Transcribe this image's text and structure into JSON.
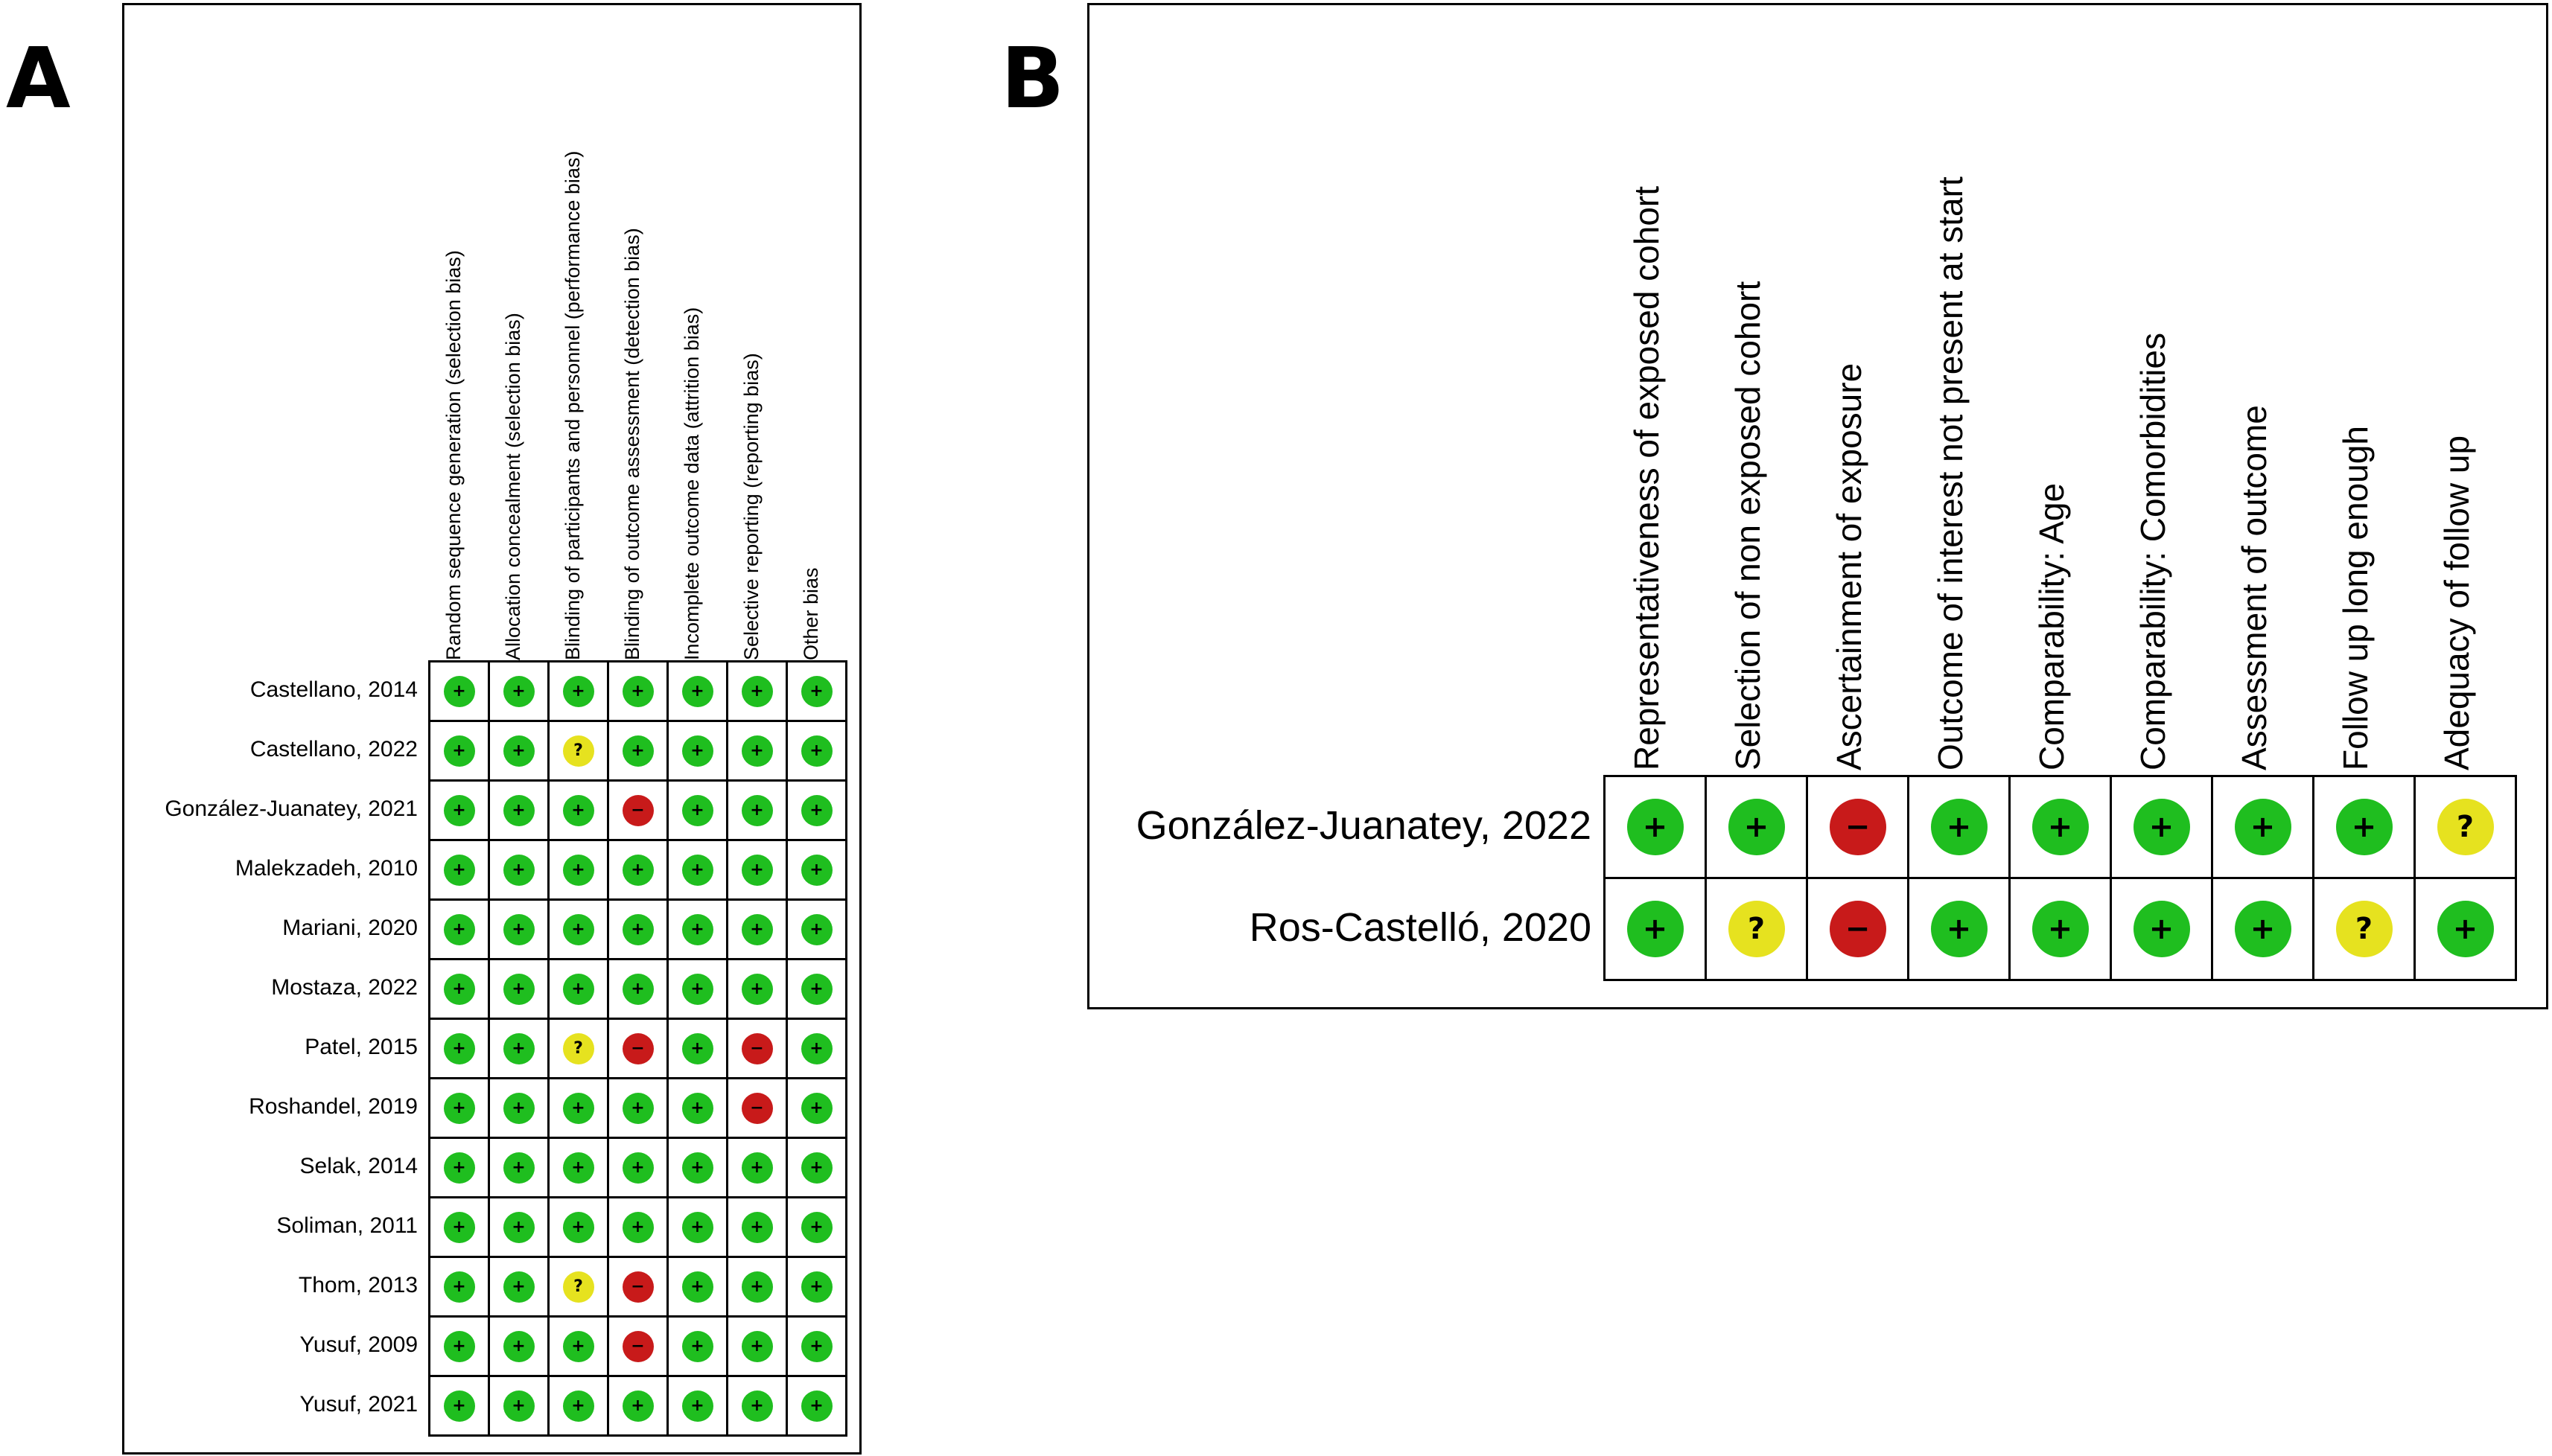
{
  "panel_a": {
    "letter": "A",
    "columns": [
      "Random sequence generation (selection bias)",
      "Allocation concealment (selection bias)",
      "Blinding of participants and personnel (performance bias)",
      "Blinding of outcome assessment (detection bias)",
      "Incomplete outcome data (attrition bias)",
      "Selective reporting (reporting bias)",
      "Other bias"
    ],
    "rows": [
      "Castellano, 2014",
      "Castellano, 2022",
      "González-Juanatey, 2021",
      "Malekzadeh, 2010",
      "Mariani, 2020",
      "Mostaza, 2022",
      "Patel, 2015",
      "Roshandel, 2019",
      "Selak, 2014",
      "Soliman, 2011",
      "Thom, 2013",
      "Yusuf, 2009",
      "Yusuf, 2021"
    ]
  },
  "panel_b": {
    "letter": "B",
    "columns": [
      "Representativeness of exposed cohort",
      "Selection of non exposed cohort",
      "Ascertainment of exposure",
      "Outcome of interest not present at start",
      "Comparability: Age",
      "Comparability: Comorbidities",
      "Assessment of outcome",
      "Follow up long enough",
      "Adequacy of follow up"
    ],
    "rows": [
      "González-Juanatey, 2022",
      "Ros-Castelló, 2020"
    ]
  },
  "legend_symbols": {
    "low": "+",
    "some": "?",
    "high": "−"
  },
  "colors": {
    "low": "#1fbe1f",
    "some": "#e6e21f",
    "high": "#c81a1a"
  },
  "chart_data": [
    {
      "type": "table",
      "panel": "A",
      "categories": [
        "Random sequence generation (selection bias)",
        "Allocation concealment (selection bias)",
        "Blinding of participants and personnel (performance bias)",
        "Blinding of outcome assessment (detection bias)",
        "Incomplete outcome data (attrition bias)",
        "Selective reporting (reporting bias)",
        "Other bias"
      ],
      "studies": [
        "Castellano, 2014",
        "Castellano, 2022",
        "González-Juanatey, 2021",
        "Malekzadeh, 2010",
        "Mariani, 2020",
        "Mostaza, 2022",
        "Patel, 2015",
        "Roshandel, 2019",
        "Selak, 2014",
        "Soliman, 2011",
        "Thom, 2013",
        "Yusuf, 2009",
        "Yusuf, 2021"
      ],
      "judgements": [
        [
          "low",
          "low",
          "low",
          "low",
          "low",
          "low",
          "low"
        ],
        [
          "low",
          "low",
          "some",
          "low",
          "low",
          "low",
          "low"
        ],
        [
          "low",
          "low",
          "low",
          "high",
          "low",
          "low",
          "low"
        ],
        [
          "low",
          "low",
          "low",
          "low",
          "low",
          "low",
          "low"
        ],
        [
          "low",
          "low",
          "low",
          "low",
          "low",
          "low",
          "low"
        ],
        [
          "low",
          "low",
          "low",
          "low",
          "low",
          "low",
          "low"
        ],
        [
          "low",
          "low",
          "some",
          "high",
          "low",
          "high",
          "low"
        ],
        [
          "low",
          "low",
          "low",
          "low",
          "low",
          "high",
          "low"
        ],
        [
          "low",
          "low",
          "low",
          "low",
          "low",
          "low",
          "low"
        ],
        [
          "low",
          "low",
          "low",
          "low",
          "low",
          "low",
          "low"
        ],
        [
          "low",
          "low",
          "some",
          "high",
          "low",
          "low",
          "low"
        ],
        [
          "low",
          "low",
          "low",
          "high",
          "low",
          "low",
          "low"
        ],
        [
          "low",
          "low",
          "low",
          "low",
          "low",
          "low",
          "low"
        ]
      ]
    },
    {
      "type": "table",
      "panel": "B",
      "categories": [
        "Representativeness of exposed cohort",
        "Selection of non exposed cohort",
        "Ascertainment of exposure",
        "Outcome of interest not present at start",
        "Comparability: Age",
        "Comparability: Comorbidities",
        "Assessment of outcome",
        "Follow up long enough",
        "Adequacy of follow up"
      ],
      "studies": [
        "González-Juanatey, 2022",
        "Ros-Castelló, 2020"
      ],
      "judgements": [
        [
          "low",
          "low",
          "high",
          "low",
          "low",
          "low",
          "low",
          "low",
          "some"
        ],
        [
          "low",
          "some",
          "high",
          "low",
          "low",
          "low",
          "low",
          "some",
          "low"
        ]
      ]
    }
  ]
}
